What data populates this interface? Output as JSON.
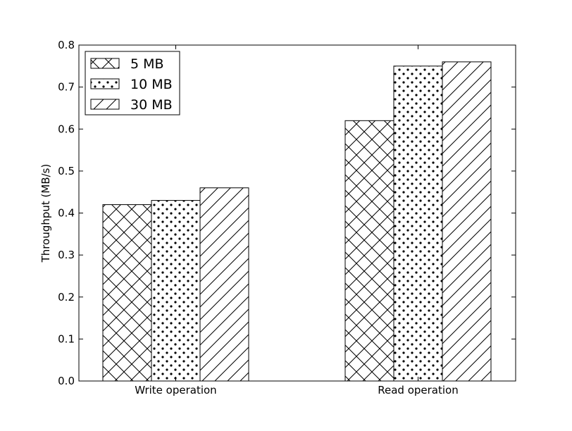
{
  "chart_data": {
    "type": "bar",
    "title": "",
    "xlabel": "",
    "ylabel": "Throughput (MB/s)",
    "categories": [
      "Write operation",
      "Read operation"
    ],
    "series": [
      {
        "name": "5 MB",
        "values": [
          0.42,
          0.62
        ],
        "pattern": "crosshatch"
      },
      {
        "name": "10 MB",
        "values": [
          0.43,
          0.75
        ],
        "pattern": "dots"
      },
      {
        "name": "30 MB",
        "values": [
          0.46,
          0.76
        ],
        "pattern": "diagonal"
      }
    ],
    "ylim": [
      0.0,
      0.8
    ],
    "yticks": [
      "0.0",
      "0.1",
      "0.2",
      "0.3",
      "0.4",
      "0.5",
      "0.6",
      "0.7",
      "0.8"
    ],
    "grid": false,
    "legend_position": "top-left",
    "colors": {
      "bar_fill": "#ffffff",
      "stroke": "#000000",
      "background": "#ffffff"
    }
  }
}
